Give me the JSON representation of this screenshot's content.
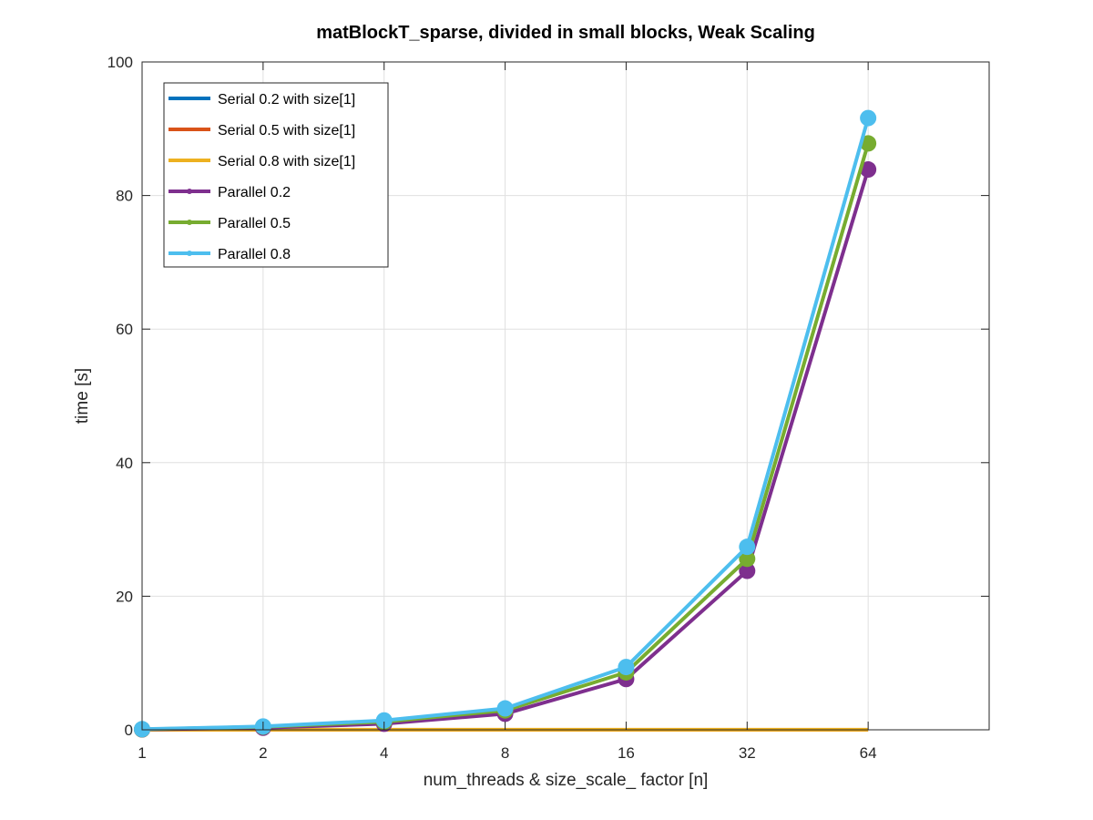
{
  "chart_data": {
    "type": "line",
    "title": "matBlockT_sparse, divided in small blocks, Weak Scaling",
    "xlabel": "num_threads & size_scale_ factor [n]",
    "ylabel": "time [s]",
    "x_scale": "log2",
    "x": [
      1,
      2,
      4,
      8,
      16,
      32,
      64
    ],
    "x_tick_labels": [
      "1",
      "2",
      "4",
      "8",
      "16",
      "32",
      "64"
    ],
    "xlim": [
      1,
      128
    ],
    "ylim": [
      0,
      100
    ],
    "y_ticks": [
      0,
      20,
      40,
      60,
      80,
      100
    ],
    "y_tick_labels": [
      "0",
      "20",
      "40",
      "60",
      "80",
      "100"
    ],
    "grid": true,
    "legend_position": "top-left",
    "series": [
      {
        "name": "Serial 0.2 with size[1]",
        "color": "#0072BD",
        "markers": false,
        "values": [
          0,
          0,
          0,
          0,
          0,
          0,
          0
        ]
      },
      {
        "name": "Serial 0.5 with size[1]",
        "color": "#D95319",
        "markers": false,
        "values": [
          0,
          0,
          0,
          0,
          0,
          0,
          0
        ]
      },
      {
        "name": "Serial 0.8 with size[1]",
        "color": "#EDB120",
        "markers": false,
        "values": [
          0.02,
          0.02,
          0.02,
          0.02,
          0.02,
          0.02,
          0.02
        ]
      },
      {
        "name": "Parallel 0.2",
        "color": "#7E2F8E",
        "markers": true,
        "values": [
          0.05,
          0.3,
          0.9,
          2.4,
          7.6,
          23.8,
          83.9
        ]
      },
      {
        "name": "Parallel 0.5",
        "color": "#77AC30",
        "markers": true,
        "values": [
          0.07,
          0.45,
          1.2,
          2.9,
          8.6,
          25.6,
          87.8
        ]
      },
      {
        "name": "Parallel 0.8",
        "color": "#4DBEEE",
        "markers": true,
        "values": [
          0.1,
          0.5,
          1.4,
          3.2,
          9.4,
          27.4,
          91.6
        ]
      }
    ]
  }
}
